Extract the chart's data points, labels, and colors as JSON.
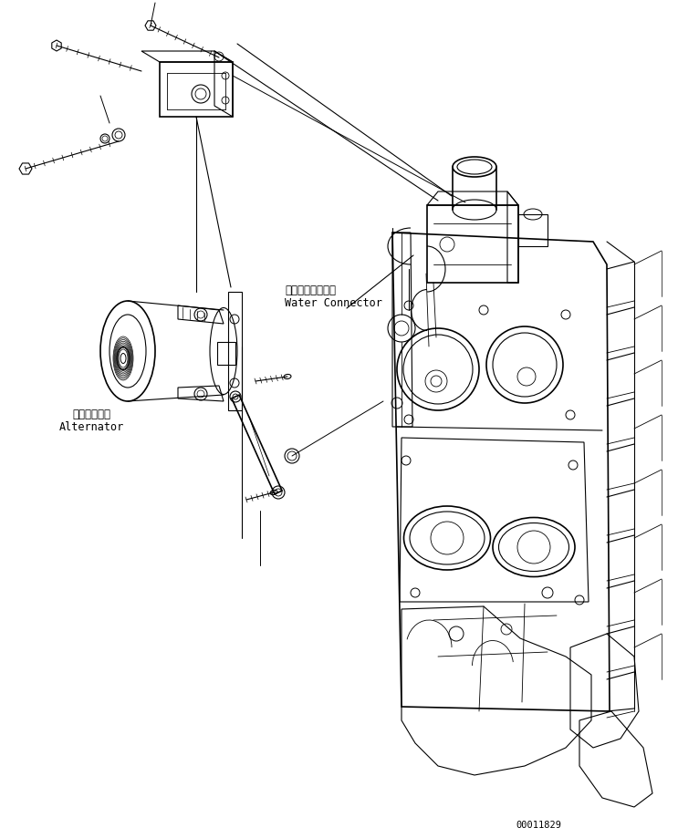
{
  "bg_color": "#ffffff",
  "line_color": "#000000",
  "text_color": "#000000",
  "fig_width": 7.43,
  "fig_height": 9.19,
  "dpi": 100,
  "part_number": "00011829",
  "label_alternator_jp": "オルタネータ",
  "label_alternator_en": "Alternator",
  "label_water_jp": "ウォータコネクタ",
  "label_water_en": "Water Connector"
}
